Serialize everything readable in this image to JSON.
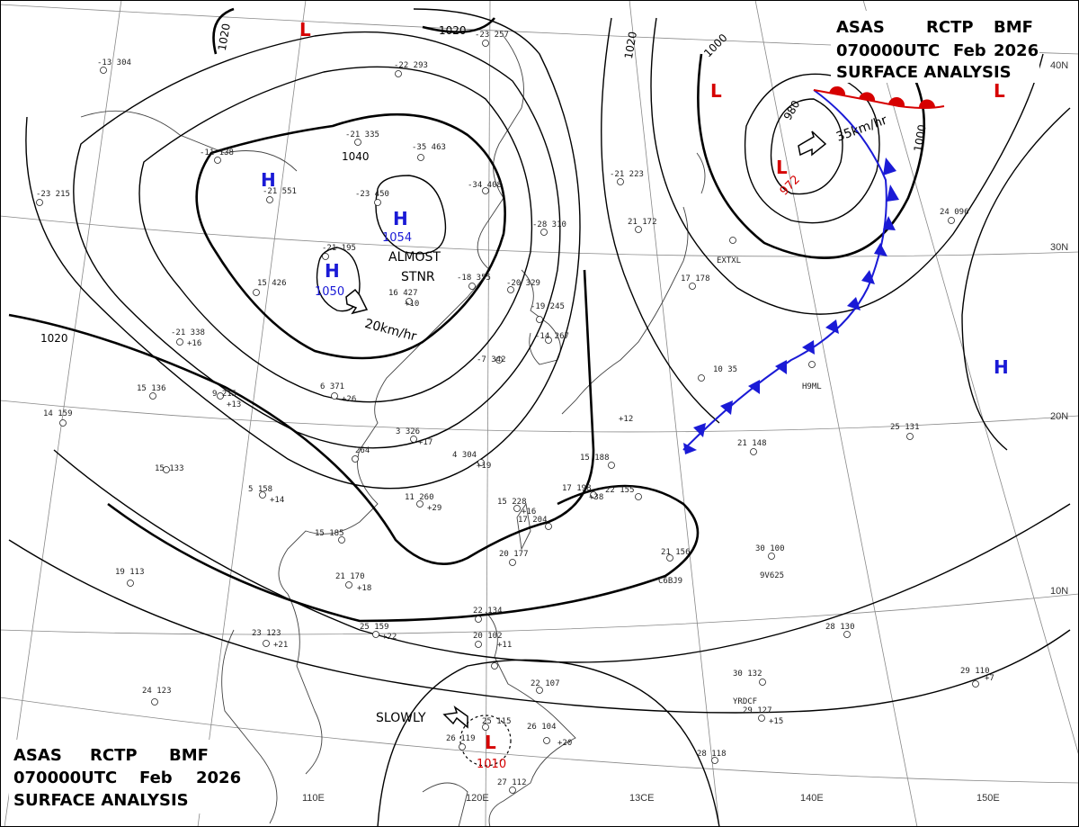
{
  "header": {
    "line1": [
      "ASAS",
      "RCTP",
      "BMF"
    ],
    "line2": [
      "070000UTC",
      "Feb",
      "2026"
    ],
    "line3": "SURFACE ANALYSIS"
  },
  "lat_labels": [
    "40N",
    "30N",
    "20N",
    "10N"
  ],
  "lon_labels": [
    "110E",
    "120E",
    "13CE",
    "140E",
    "150E"
  ],
  "isobar_labels": [
    "1020",
    "1020",
    "1040",
    "1020",
    "1000",
    "1000",
    "980",
    "1020"
  ],
  "centers": [
    {
      "type": "H",
      "pressure": ""
    },
    {
      "type": "H",
      "pressure": "1054"
    },
    {
      "type": "H",
      "pressure": "1050"
    },
    {
      "type": "L",
      "pressure": "972"
    },
    {
      "type": "L",
      "pressure": ""
    },
    {
      "type": "L",
      "pressure": ""
    },
    {
      "type": "L",
      "pressure": ""
    },
    {
      "type": "H",
      "pressure": ""
    },
    {
      "type": "L",
      "pressure": "1010"
    }
  ],
  "motions": [
    {
      "text": "35km/hr"
    },
    {
      "text": "20km/hr"
    },
    {
      "text": "ALMOST"
    },
    {
      "text": "STNR"
    },
    {
      "text": "SLOWLY"
    }
  ],
  "stations": [
    "-13 304",
    "-21 551",
    "-23 450",
    "-35 463",
    "-34 408",
    "-22 293",
    "-23 257",
    "-21 335",
    "-11 138",
    "-23 215",
    "-21 195",
    "-18 355",
    "-20 329",
    "-28 310",
    "-21 223",
    "15 426",
    "16 427",
    "-21 338",
    "15 136",
    "14 159",
    "9 215",
    "6 371",
    "3 326",
    "4 304",
    "264",
    "15 133",
    "5 158",
    "11 260",
    "15 188",
    "17 198",
    "22 155",
    "15 228",
    "17 204",
    "20 177",
    "15 185",
    "21 170",
    "19 113",
    "23 123",
    "24 123",
    "25 159",
    "22 134",
    "20 102",
    "25 115",
    "26 104",
    "22 107",
    "27 112",
    "28 118",
    "26 119",
    "21 156",
    "30 100",
    "28 130",
    "30 132",
    "29 127",
    "29 110",
    "25 131",
    "21 148",
    "10 35",
    "17 178",
    "21 172",
    "24 096",
    "C6BJ9",
    "9V625",
    "YRDCF",
    "H9ML",
    "EXTXL",
    "-7 342",
    "-14 267",
    "-19 245",
    "+10",
    "+16",
    "+13",
    "+26",
    "+17",
    "+19",
    "+14",
    "+29",
    "+16",
    "+18",
    "+22",
    "+21",
    "+12",
    "+38",
    "+11",
    "+20",
    "+15",
    "+7"
  ],
  "colors": {
    "isobar": "#000000",
    "high": "#1a1ad6",
    "low": "#d60000",
    "cold_front": "#1a1ad6",
    "warm_front": "#d60000",
    "coast": "#444444",
    "grid": "#888888"
  }
}
